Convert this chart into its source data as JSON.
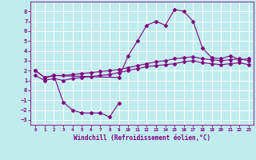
{
  "xlabel": "Windchill (Refroidissement éolien,°C)",
  "line_color": "#800080",
  "bg_color": "#c0ecee",
  "grid_color": "#ffffff",
  "ylim": [
    -3.5,
    9.0
  ],
  "yticks": [
    8,
    7,
    6,
    5,
    4,
    3,
    2,
    1,
    0,
    -1,
    -2,
    -3
  ],
  "xlim": [
    -0.5,
    23.5
  ],
  "curve_peak": {
    "x": [
      0,
      1,
      2,
      9,
      10,
      11,
      12,
      13,
      14,
      15,
      16,
      17,
      18,
      19,
      20,
      21,
      22,
      23
    ],
    "y": [
      2.0,
      1.3,
      1.5,
      1.3,
      3.5,
      5.0,
      6.6,
      7.0,
      6.6,
      8.2,
      8.0,
      7.0,
      4.3,
      3.3,
      3.2,
      3.5,
      3.1,
      3.2
    ]
  },
  "curve_upper_linear": {
    "x": [
      0,
      1,
      2,
      3,
      4,
      5,
      6,
      7,
      8,
      9,
      10,
      11,
      12,
      13,
      14,
      15,
      16,
      17,
      18,
      19,
      20,
      21,
      22,
      23
    ],
    "y": [
      2.0,
      1.3,
      1.5,
      1.5,
      1.6,
      1.7,
      1.8,
      1.9,
      2.0,
      2.1,
      2.3,
      2.5,
      2.7,
      2.9,
      3.0,
      3.2,
      3.3,
      3.4,
      3.2,
      3.1,
      3.0,
      3.1,
      3.2,
      3.0
    ]
  },
  "curve_lower_linear": {
    "x": [
      0,
      1,
      2,
      3,
      4,
      5,
      6,
      7,
      8,
      9,
      10,
      11,
      12,
      13,
      14,
      15,
      16,
      17,
      18,
      19,
      20,
      21,
      22,
      23
    ],
    "y": [
      1.5,
      1.0,
      1.2,
      1.0,
      1.2,
      1.3,
      1.4,
      1.5,
      1.6,
      1.8,
      2.0,
      2.2,
      2.4,
      2.5,
      2.6,
      2.7,
      2.9,
      3.0,
      2.8,
      2.7,
      2.6,
      2.7,
      2.8,
      2.6
    ]
  },
  "curve_bottom": {
    "x": [
      1,
      2,
      3,
      4,
      5,
      6,
      7,
      8,
      9
    ],
    "y": [
      1.3,
      1.5,
      -1.2,
      -2.0,
      -2.3,
      -2.3,
      -2.3,
      -2.7,
      -1.3
    ]
  }
}
